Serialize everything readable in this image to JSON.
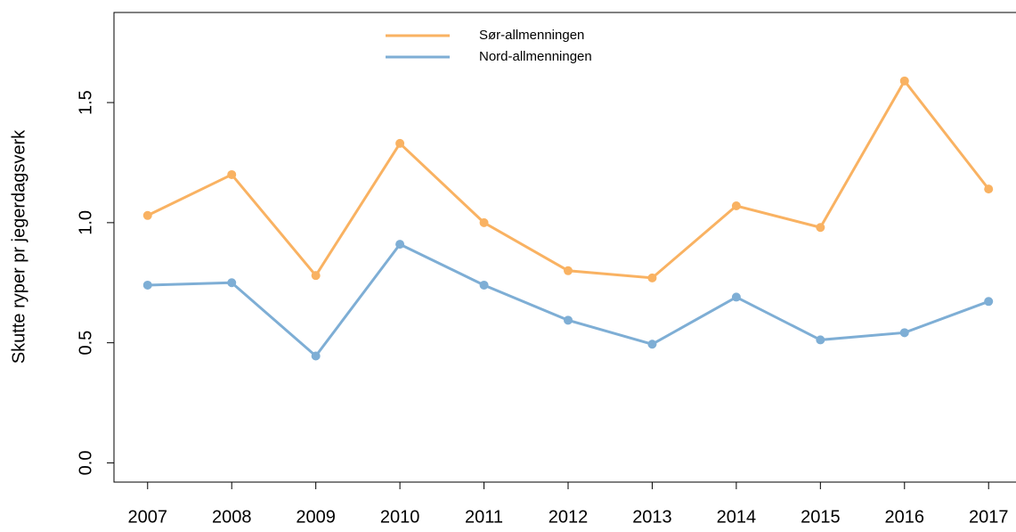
{
  "chart_data": {
    "type": "line",
    "y_label": "Skutte ryper pr jegerdagsverk",
    "x": [
      2007,
      2008,
      2009,
      2010,
      2011,
      2012,
      2013,
      2014,
      2015,
      2016,
      2017
    ],
    "series": [
      {
        "name": "Sør-allmenningen",
        "color": "#f9b262",
        "values": [
          1.03,
          1.2,
          0.78,
          1.33,
          1.0,
          0.8,
          0.77,
          1.07,
          0.98,
          1.59,
          1.14
        ]
      },
      {
        "name": "Nord-allmenningen",
        "color": "#7eaed5",
        "values": [
          0.74,
          0.75,
          0.445,
          0.91,
          0.74,
          0.594,
          0.494,
          0.69,
          0.512,
          0.542,
          0.672
        ]
      }
    ],
    "xlim": [
      2006.6,
      2017.4
    ],
    "ylim": [
      -0.08,
      1.875
    ],
    "xticks": [
      2007,
      2008,
      2009,
      2010,
      2011,
      2012,
      2013,
      2014,
      2015,
      2016,
      2017
    ],
    "yticks": [
      {
        "value": 0,
        "label": "0.0"
      },
      0.5,
      {
        "value": 1,
        "label": "1.0"
      },
      1.5
    ],
    "legend": "top"
  }
}
